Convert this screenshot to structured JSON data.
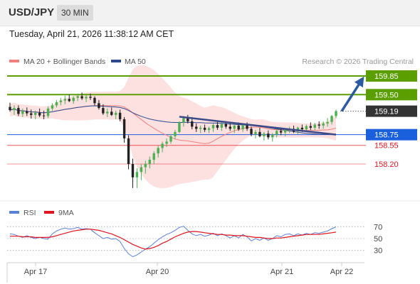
{
  "header": {
    "symbol": "USD/JPY",
    "timeframe": "30 MIN"
  },
  "timestamp": "Tuesday, April 21, 2026 11:38:12 AM CET",
  "credit": "Research © 2026 Trading Central",
  "legend": {
    "ma20": {
      "label": "MA 20 + Bollinger Bands",
      "color": "#f08080"
    },
    "ma50": {
      "label": "MA 50",
      "color": "#2c4a8c"
    },
    "rsi": {
      "label": "RSI",
      "color": "#5a7fd6"
    },
    "rsi9ma": {
      "label": "9MA",
      "color": "#e0141e"
    }
  },
  "colors": {
    "up": "#4caf50",
    "down": "#222222",
    "resistance": "#5a9e00",
    "support_blue": "#1a5fdc",
    "support_red": "#e0141e",
    "arrow": "#2c5aa0",
    "trendline": "#3c4a88",
    "band_fill": "#fde0e0"
  },
  "chart_data": {
    "type": "candlestick",
    "x_tick_labels": [
      "Apr 17",
      "Apr 20",
      "Apr 21",
      "Apr 22"
    ],
    "price_levels": [
      {
        "label": "159.85",
        "value": 159.85,
        "kind": "resistance"
      },
      {
        "label": "159.50",
        "value": 159.5,
        "kind": "resistance"
      },
      {
        "label": "159.19",
        "value": 159.19,
        "kind": "current"
      },
      {
        "label": "158.75",
        "value": 158.75,
        "kind": "pivot"
      },
      {
        "label": "158.55",
        "value": 158.55,
        "kind": "support"
      },
      {
        "label": "158.20",
        "value": 158.2,
        "kind": "support"
      }
    ],
    "rsi_levels": [
      70,
      50,
      30
    ],
    "ohlc": [
      [
        159.27,
        159.35,
        159.18,
        159.21
      ],
      [
        159.21,
        159.3,
        159.12,
        159.25
      ],
      [
        159.25,
        159.3,
        159.1,
        159.14
      ],
      [
        159.14,
        159.24,
        159.08,
        159.19
      ],
      [
        159.19,
        159.26,
        159.1,
        159.15
      ],
      [
        159.15,
        159.22,
        159.05,
        159.12
      ],
      [
        159.12,
        159.2,
        159.04,
        159.16
      ],
      [
        159.16,
        159.24,
        159.08,
        159.11
      ],
      [
        159.11,
        159.2,
        159.04,
        159.1
      ],
      [
        159.1,
        159.28,
        159.06,
        159.24
      ],
      [
        159.24,
        159.34,
        159.2,
        159.3
      ],
      [
        159.3,
        159.4,
        159.26,
        159.36
      ],
      [
        159.36,
        159.44,
        159.3,
        159.39
      ],
      [
        159.39,
        159.48,
        159.32,
        159.42
      ],
      [
        159.42,
        159.5,
        159.36,
        159.38
      ],
      [
        159.38,
        159.47,
        159.33,
        159.44
      ],
      [
        159.44,
        159.52,
        159.38,
        159.47
      ],
      [
        159.47,
        159.54,
        159.4,
        159.43
      ],
      [
        159.43,
        159.5,
        159.36,
        159.46
      ],
      [
        159.46,
        159.52,
        159.4,
        159.44
      ],
      [
        159.44,
        159.47,
        159.3,
        159.34
      ],
      [
        159.34,
        159.4,
        159.22,
        159.25
      ],
      [
        159.25,
        159.32,
        159.12,
        159.15
      ],
      [
        159.15,
        159.24,
        159.08,
        159.18
      ],
      [
        159.18,
        159.26,
        159.1,
        159.12
      ],
      [
        159.12,
        159.2,
        159.04,
        159.16
      ],
      [
        159.16,
        159.22,
        159.0,
        159.04
      ],
      [
        159.04,
        159.08,
        158.6,
        158.68
      ],
      [
        158.68,
        158.74,
        158.1,
        158.2
      ],
      [
        158.2,
        158.3,
        157.75,
        157.95
      ],
      [
        157.95,
        158.12,
        157.75,
        158.05
      ],
      [
        158.05,
        158.2,
        157.9,
        158.14
      ],
      [
        158.14,
        158.26,
        158.02,
        158.2
      ],
      [
        158.2,
        158.34,
        158.12,
        158.28
      ],
      [
        158.28,
        158.44,
        158.2,
        158.4
      ],
      [
        158.4,
        158.54,
        158.32,
        158.5
      ],
      [
        158.5,
        158.62,
        158.42,
        158.58
      ],
      [
        158.58,
        158.68,
        158.52,
        158.62
      ],
      [
        158.62,
        158.76,
        158.58,
        158.72
      ],
      [
        158.72,
        158.84,
        158.66,
        158.8
      ],
      [
        158.8,
        159.0,
        158.78,
        158.98
      ],
      [
        158.98,
        159.1,
        158.9,
        159.06
      ],
      [
        159.06,
        159.12,
        158.96,
        159.0
      ],
      [
        159.0,
        159.08,
        158.85,
        158.9
      ],
      [
        158.9,
        158.96,
        158.8,
        158.86
      ],
      [
        158.86,
        158.92,
        158.78,
        158.88
      ],
      [
        158.88,
        158.94,
        158.8,
        158.84
      ],
      [
        158.84,
        158.9,
        158.78,
        158.87
      ],
      [
        158.87,
        158.96,
        158.8,
        158.93
      ],
      [
        158.93,
        158.99,
        158.84,
        158.88
      ],
      [
        158.88,
        158.98,
        158.82,
        158.95
      ],
      [
        158.95,
        159.0,
        158.86,
        158.9
      ],
      [
        158.9,
        158.96,
        158.82,
        158.86
      ],
      [
        158.86,
        158.94,
        158.78,
        158.92
      ],
      [
        158.92,
        158.98,
        158.82,
        158.85
      ],
      [
        158.85,
        158.96,
        158.8,
        158.93
      ],
      [
        158.93,
        158.98,
        158.82,
        158.86
      ],
      [
        158.86,
        158.9,
        158.72,
        158.76
      ],
      [
        158.76,
        158.84,
        158.68,
        158.8
      ],
      [
        158.8,
        158.88,
        158.7,
        158.72
      ],
      [
        158.72,
        158.8,
        158.64,
        158.77
      ],
      [
        158.77,
        158.83,
        158.66,
        158.7
      ],
      [
        158.7,
        158.78,
        158.62,
        158.75
      ],
      [
        158.75,
        158.85,
        158.7,
        158.82
      ],
      [
        158.82,
        158.88,
        158.74,
        158.79
      ],
      [
        158.79,
        158.86,
        158.72,
        158.84
      ],
      [
        158.84,
        158.9,
        158.78,
        158.86
      ],
      [
        158.86,
        158.92,
        158.78,
        158.81
      ],
      [
        158.81,
        158.9,
        158.76,
        158.88
      ],
      [
        158.88,
        158.94,
        158.8,
        158.85
      ],
      [
        158.85,
        158.94,
        158.8,
        158.91
      ],
      [
        158.91,
        158.98,
        158.84,
        158.88
      ],
      [
        158.88,
        158.97,
        158.83,
        158.94
      ],
      [
        158.94,
        159.0,
        158.86,
        158.92
      ],
      [
        158.92,
        159.0,
        158.86,
        158.96
      ],
      [
        158.96,
        159.06,
        158.9,
        158.99
      ],
      [
        158.99,
        159.12,
        158.94,
        159.1
      ],
      [
        159.1,
        159.22,
        159.06,
        159.19
      ]
    ],
    "rsi": [
      58,
      57,
      54,
      52,
      55,
      52,
      50,
      52,
      50,
      49,
      58,
      63,
      66,
      68,
      66,
      67,
      69,
      66,
      67,
      66,
      60,
      55,
      50,
      52,
      49,
      50,
      45,
      33,
      24,
      19,
      22,
      27,
      32,
      36,
      42,
      48,
      53,
      57,
      60,
      64,
      69,
      71,
      64,
      58,
      55,
      57,
      54,
      56,
      59,
      55,
      58,
      55,
      51,
      55,
      51,
      57,
      53,
      46,
      50,
      47,
      51,
      47,
      50,
      55,
      53,
      57,
      58,
      55,
      58,
      56,
      59,
      57,
      60,
      59,
      61,
      63,
      67,
      70
    ],
    "rsi_ma9": [
      54,
      54,
      54,
      53,
      53,
      53,
      52,
      52,
      52,
      52,
      53,
      55,
      57,
      59,
      61,
      63,
      64,
      65,
      66,
      66,
      65,
      64,
      62,
      60,
      58,
      55,
      52,
      48,
      44,
      40,
      37,
      34,
      32,
      33,
      35,
      38,
      42,
      45,
      49,
      53,
      56,
      59,
      61,
      62,
      62,
      61,
      60,
      59,
      58,
      57,
      57,
      56,
      56,
      55,
      55,
      55,
      54,
      53,
      52,
      52,
      51,
      50,
      50,
      51,
      51,
      52,
      53,
      54,
      55,
      56,
      57,
      57,
      57,
      57,
      58,
      59,
      60,
      61
    ]
  }
}
